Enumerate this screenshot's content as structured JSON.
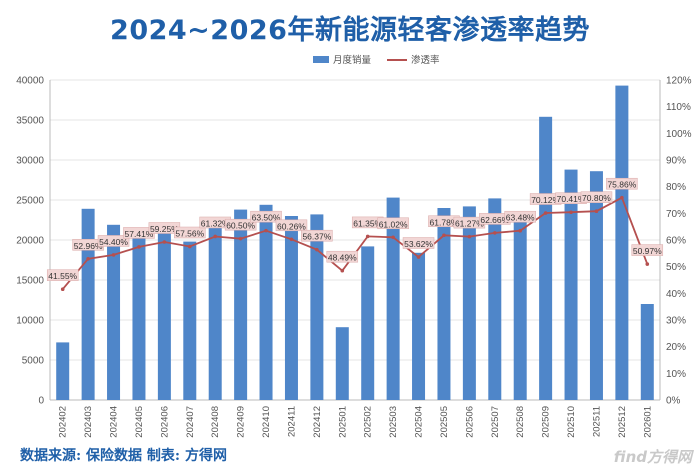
{
  "title": "2024~2026年新能源轻客渗透率趋势",
  "source_note": "数据来源: 保险数据 制表: 方得网",
  "watermark": "find方得网",
  "colors": {
    "title": "#1f5fa8",
    "bar": "#4f86c9",
    "line": "#b5504f",
    "label_bg": "#f2d6d5",
    "axis_text": "#555555",
    "grid": "#e4e4e4"
  },
  "chart_data": {
    "type": "bar+line",
    "title": "2024~2026年新能源轻客渗透率趋势",
    "categories": [
      "202402",
      "202403",
      "202404",
      "202405",
      "202406",
      "202407",
      "202408",
      "202409",
      "202410",
      "202411",
      "202412",
      "202501",
      "202502",
      "202503",
      "202504",
      "202505",
      "202506",
      "202507",
      "202508",
      "202509",
      "202510",
      "202511",
      "202512",
      "202601"
    ],
    "series": [
      {
        "name": "月度销量",
        "type": "bar",
        "axis": "left",
        "values": [
          7200,
          23900,
          21900,
          21300,
          21900,
          19800,
          22800,
          23800,
          24400,
          23000,
          23200,
          9100,
          19200,
          25300,
          18400,
          24000,
          24200,
          25200,
          23400,
          35400,
          28800,
          28600,
          39300,
          12000
        ]
      },
      {
        "name": "渗透率",
        "type": "line",
        "axis": "right",
        "values": [
          41.55,
          52.96,
          54.4,
          57.41,
          59.25,
          57.56,
          61.32,
          60.5,
          63.5,
          60.26,
          56.37,
          48.49,
          61.35,
          61.02,
          53.62,
          61.78,
          61.27,
          62.66,
          63.48,
          70.12,
          70.41,
          70.8,
          75.86,
          50.97
        ],
        "labels": [
          "41.55%",
          "52.96%",
          "54.40%",
          "57.41%",
          "59.25%",
          "57.56%",
          "61.32%",
          "60.50%",
          "63.50%",
          "60.26%",
          "56.37%",
          "48.49%",
          "61.35%",
          "61.02%",
          "53.62%",
          "61.78%",
          "61.27%",
          "62.66%",
          "63.48%",
          "70.12%",
          "70.41%",
          "70.80%",
          "75.86%",
          "50.97%"
        ]
      }
    ],
    "y_left": {
      "min": 0,
      "max": 40000,
      "ticks": [
        "0",
        "5000",
        "10000",
        "15000",
        "20000",
        "25000",
        "30000",
        "35000",
        "40000"
      ]
    },
    "y_right": {
      "min": 0,
      "max": 120,
      "ticks": [
        "0%",
        "10%",
        "20%",
        "30%",
        "40%",
        "50%",
        "60%",
        "70%",
        "80%",
        "90%",
        "100%",
        "110%",
        "120%"
      ]
    },
    "legend": {
      "position": "top-center",
      "bar_label": "月度销量",
      "line_label": "渗透率"
    },
    "grid": true
  }
}
